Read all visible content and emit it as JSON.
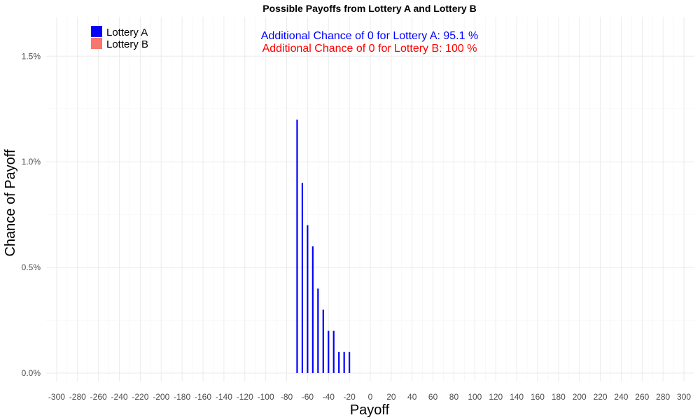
{
  "chart_data": {
    "type": "bar",
    "title": "Possible Payoffs from Lottery A and Lottery B",
    "xlabel": "Payoff",
    "ylabel": "Chance of Payoff",
    "xlim": [
      -310,
      310
    ],
    "ylim": [
      0,
      1.5
    ],
    "x_ticks": [
      -300,
      -280,
      -260,
      -240,
      -220,
      -200,
      -180,
      -160,
      -140,
      -120,
      -100,
      -80,
      -60,
      -40,
      -20,
      0,
      20,
      40,
      60,
      80,
      100,
      120,
      140,
      160,
      180,
      200,
      220,
      240,
      260,
      280,
      300
    ],
    "y_ticks": [
      0,
      0.5,
      1.0,
      1.5
    ],
    "y_tick_labels": [
      "0.0%",
      "0.5%",
      "1.0%",
      "1.5%"
    ],
    "grid": true,
    "legend_position": "top-left",
    "series": [
      {
        "name": "Lottery A",
        "color": "#0000ff",
        "x": [
          -70,
          -65,
          -60,
          -55,
          -50,
          -45,
          -40,
          -35,
          -30,
          -25,
          -20
        ],
        "values": [
          1.2,
          0.9,
          0.7,
          0.6,
          0.4,
          0.3,
          0.2,
          0.2,
          0.1,
          0.1,
          0.1
        ]
      },
      {
        "name": "Lottery B",
        "color": "#f8766d",
        "x": [],
        "values": []
      }
    ],
    "annotations": [
      {
        "text": "Additional Chance of 0 for Lottery A:  95.1 %",
        "color": "#0000ff"
      },
      {
        "text": "Additional Chance of 0 for Lottery B:  100 %",
        "color": "#ff0000"
      }
    ]
  }
}
